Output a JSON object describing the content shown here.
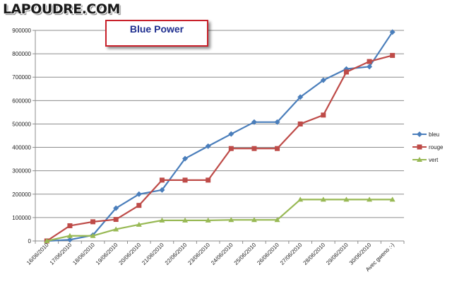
{
  "watermark": "LAPOUDRE.COM",
  "chart_data": {
    "type": "line",
    "title": "Blue Power",
    "categories": [
      "16/06/2010",
      "17/06/2010",
      "18/06/2010",
      "19/06/2010",
      "20/06/2010",
      "21/06/2010",
      "22/06/2010",
      "23/06/2010",
      "24/06/2010",
      "25/06/2010",
      "26/06/2010",
      "27/06/2010",
      "28/06/2010",
      "29/06/2010",
      "30/06/2010",
      "Avec gweno :-)"
    ],
    "series": [
      {
        "name": "bleu",
        "color": "#4a7ebb",
        "marker": "diamond",
        "values": [
          0,
          5000,
          25000,
          140000,
          200000,
          218000,
          352000,
          405000,
          457000,
          508000,
          508000,
          615000,
          687000,
          735000,
          745000,
          893000
        ]
      },
      {
        "name": "rouge",
        "color": "#be4b48",
        "marker": "square",
        "values": [
          0,
          65000,
          82000,
          92000,
          152000,
          260000,
          260000,
          260000,
          395000,
          395000,
          395000,
          500000,
          538000,
          722000,
          767000,
          793000
        ]
      },
      {
        "name": "vert",
        "color": "#98b954",
        "marker": "triangle",
        "values": [
          0,
          22000,
          22000,
          50000,
          70000,
          88000,
          88000,
          88000,
          90000,
          90000,
          90000,
          177000,
          177000,
          177000,
          177000,
          177000
        ]
      }
    ],
    "ylim": [
      0,
      900000
    ],
    "yticks": [
      "0",
      "100000",
      "200000",
      "300000",
      "400000",
      "500000",
      "600000",
      "700000",
      "800000",
      "900000"
    ],
    "xlabel": "",
    "ylabel": "",
    "grid": true,
    "legend_position": "right"
  }
}
